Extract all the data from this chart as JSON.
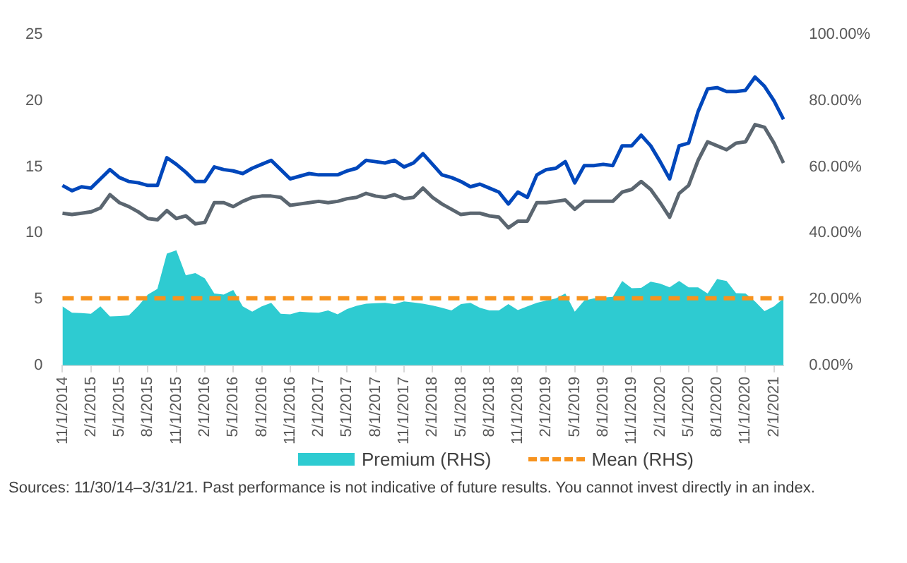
{
  "chart_data": {
    "type": "line",
    "categories": [
      "11/1/2014",
      null,
      null,
      "2/1/2015",
      null,
      null,
      "5/1/2015",
      null,
      null,
      "8/1/2015",
      null,
      null,
      "11/1/2015",
      null,
      null,
      "2/1/2016",
      null,
      null,
      "5/1/2016",
      null,
      null,
      "8/1/2016",
      null,
      null,
      "11/1/2016",
      null,
      null,
      "2/1/2017",
      null,
      null,
      "5/1/2017",
      null,
      null,
      "8/1/2017",
      null,
      null,
      "11/1/2017",
      null,
      null,
      "2/1/2018",
      null,
      null,
      "5/1/2018",
      null,
      null,
      "8/1/2018",
      null,
      null,
      "11/1/2018",
      null,
      null,
      "2/1/2019",
      null,
      null,
      "5/1/2019",
      null,
      null,
      "8/1/2019",
      null,
      null,
      "11/1/2019",
      null,
      null,
      "2/1/2020",
      null,
      null,
      "5/1/2020",
      null,
      null,
      "8/1/2020",
      null,
      null,
      "11/1/2020",
      null,
      null,
      "2/1/2021",
      null
    ],
    "series": [
      {
        "name": "Premium (RHS)",
        "type": "area",
        "axis": "y2",
        "color": "#2ecbd1",
        "values": [
          17.8,
          15.9,
          15.8,
          15.6,
          17.8,
          14.8,
          14.9,
          15.1,
          18.0,
          21.4,
          23.1,
          33.8,
          34.8,
          27.2,
          27.9,
          26.3,
          21.7,
          21.4,
          22.8,
          17.8,
          16.2,
          17.8,
          18.9,
          15.6,
          15.4,
          16.2,
          16.0,
          15.9,
          16.6,
          15.4,
          17.0,
          18.0,
          18.6,
          18.8,
          18.9,
          18.5,
          19.3,
          19.0,
          18.6,
          18.1,
          17.4,
          16.6,
          18.5,
          18.9,
          17.4,
          16.6,
          16.6,
          18.5,
          16.7,
          17.8,
          18.9,
          19.6,
          20.2,
          21.7,
          16.2,
          19.6,
          20.2,
          20.5,
          20.7,
          25.5,
          23.3,
          23.4,
          25.3,
          24.7,
          23.6,
          25.5,
          23.6,
          23.6,
          21.7,
          26.1,
          25.5,
          21.8,
          21.7,
          19.3,
          16.4,
          17.8,
          20.2
        ]
      },
      {
        "color": "#0047bb",
        "values": [
          13.6,
          13.2,
          13.5,
          13.4,
          14.1,
          14.8,
          14.2,
          13.9,
          13.8,
          13.6,
          13.6,
          15.7,
          15.2,
          14.6,
          13.9,
          13.9,
          15.0,
          14.8,
          14.7,
          14.5,
          14.9,
          15.2,
          15.5,
          14.8,
          14.1,
          14.3,
          14.5,
          14.4,
          14.4,
          14.4,
          14.7,
          14.9,
          15.5,
          15.4,
          15.3,
          15.5,
          15.0,
          15.3,
          16.0,
          15.2,
          14.4,
          14.2,
          13.9,
          13.5,
          13.7,
          13.4,
          13.1,
          12.2,
          13.1,
          12.7,
          14.4,
          14.8,
          14.9,
          15.4,
          13.8,
          15.1,
          15.1,
          15.2,
          15.1,
          16.6,
          16.6,
          17.4,
          16.6,
          15.4,
          14.1,
          16.6,
          16.8,
          19.2,
          20.9,
          21.0,
          20.7,
          20.7,
          20.8,
          21.8,
          21.1,
          20.0,
          18.6
        ]
      },
      {
        "color": "#5b6670",
        "values": [
          11.5,
          11.4,
          11.5,
          11.6,
          11.9,
          12.9,
          12.3,
          12.0,
          11.6,
          11.1,
          11.0,
          11.7,
          11.1,
          11.3,
          10.7,
          10.8,
          12.3,
          12.3,
          12.0,
          12.4,
          12.7,
          12.8,
          12.8,
          12.7,
          12.1,
          12.2,
          12.3,
          12.4,
          12.3,
          12.4,
          12.6,
          12.7,
          13.0,
          12.8,
          12.7,
          12.9,
          12.6,
          12.7,
          13.4,
          12.7,
          12.2,
          11.8,
          11.4,
          11.5,
          11.5,
          11.3,
          11.2,
          10.4,
          10.9,
          10.9,
          12.3,
          12.3,
          12.4,
          12.5,
          11.8,
          12.4,
          12.4,
          12.4,
          12.4,
          13.1,
          13.3,
          13.9,
          13.3,
          12.3,
          11.2,
          13.0,
          13.6,
          15.5,
          16.9,
          16.6,
          16.3,
          16.8,
          16.9,
          18.2,
          18.0,
          16.8,
          15.3
        ]
      }
    ],
    "ylim": [
      0,
      25
    ],
    "yticks": [
      0,
      5,
      10,
      15,
      20,
      25
    ],
    "y2lim": [
      0,
      100
    ],
    "y2ticks": [
      {
        "value": 0,
        "label": "0.00%"
      },
      {
        "value": 20,
        "label": "20.00%"
      },
      {
        "value": 40,
        "label": "40.00%"
      },
      {
        "value": 60,
        "label": "60.00%"
      },
      {
        "value": 80,
        "label": "80.00%"
      },
      {
        "value": 100,
        "label": "100.00%"
      }
    ],
    "ref_lines": [
      {
        "axis": "y2",
        "value": 20.3,
        "label": "Mean (RHS)",
        "color": "#f7931e",
        "line_style": "dashed"
      }
    ],
    "legend": "bottom",
    "grid": false,
    "marker": "none",
    "annotations": [
      "Sources: 11/30/14–3/31/21. Past performance is not indicative of future results. You cannot invest directly in an index."
    ]
  }
}
